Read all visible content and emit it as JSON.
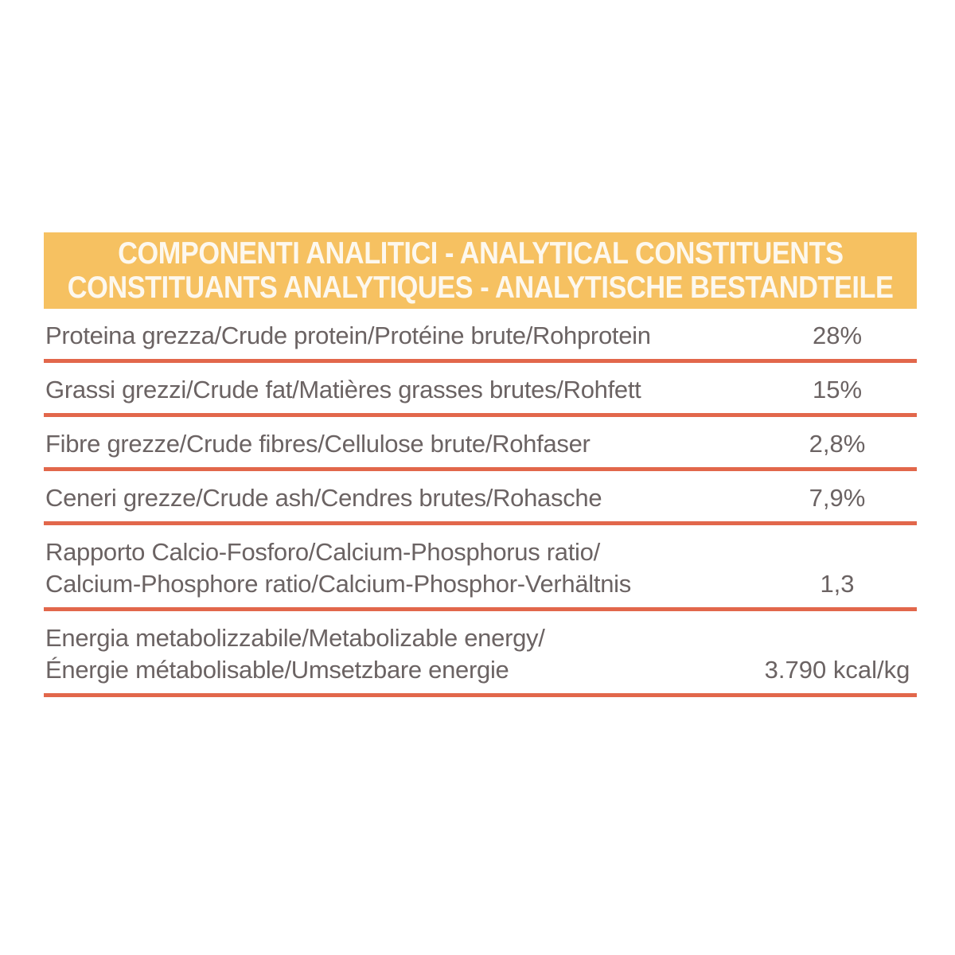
{
  "colors": {
    "page_background": "#ffffff",
    "banner_background": "#f6c161",
    "banner_text": "#fdf8ee",
    "separator": "#e2674b",
    "body_text": "#6b6363"
  },
  "header": {
    "line1": "COMPONENTI ANALITICI - ANALYTICAL CONSTITUENTS",
    "line2": "CONSTITUANTS ANALYTIQUES - ANALYTISCHE BESTANDTEILE"
  },
  "table": {
    "rows": [
      {
        "lines": [
          "Proteina grezza/Crude protein/Protéine brute/Rohprotein"
        ],
        "value": "28%"
      },
      {
        "lines": [
          "Grassi grezzi/Crude fat/Matières grasses brutes/Rohfett"
        ],
        "value": "15%"
      },
      {
        "lines": [
          "Fibre grezze/Crude fibres/Cellulose brute/Rohfaser"
        ],
        "value": "2,8%"
      },
      {
        "lines": [
          "Ceneri grezze/Crude ash/Cendres brutes/Rohasche"
        ],
        "value": "7,9%"
      },
      {
        "lines": [
          "Rapporto Calcio-Fosforo/Calcium-Phosphorus ratio/",
          "Calcium-Phosphore ratio/Calcium-Phosphor-Verhältnis"
        ],
        "value": "1,3"
      },
      {
        "lines": [
          "Energia metabolizzabile/Metabolizable energy/",
          "Énergie métabolisable/Umsetzbare energie"
        ],
        "value": "3.790 kcal/kg"
      }
    ]
  }
}
